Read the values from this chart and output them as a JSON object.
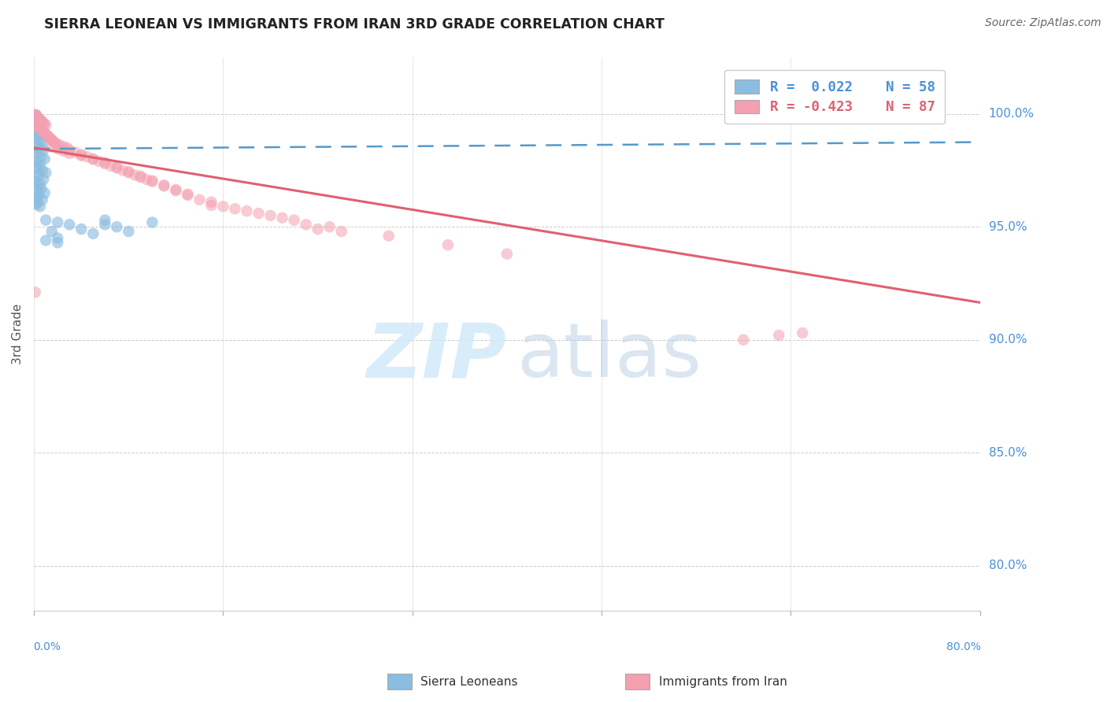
{
  "title": "SIERRA LEONEAN VS IMMIGRANTS FROM IRAN 3RD GRADE CORRELATION CHART",
  "source": "Source: ZipAtlas.com",
  "ylabel": "3rd Grade",
  "ytick_labels": [
    "80.0%",
    "85.0%",
    "90.0%",
    "95.0%",
    "100.0%"
  ],
  "ytick_values": [
    0.8,
    0.85,
    0.9,
    0.95,
    1.0
  ],
  "xlim": [
    0.0,
    0.8
  ],
  "ylim": [
    0.78,
    1.025
  ],
  "blue_color": "#8bbde0",
  "pink_color": "#f4a0b0",
  "trendline_blue_color": "#5599cc",
  "trendline_pink_color": "#e06070",
  "background_color": "#ffffff",
  "blue_trendline": [
    [
      0.0,
      0.9845
    ],
    [
      0.8,
      0.9875
    ]
  ],
  "pink_trendline": [
    [
      0.0,
      0.985
    ],
    [
      0.8,
      0.9165
    ]
  ],
  "sierra_leonean_points": [
    [
      0.001,
      0.999
    ],
    [
      0.002,
      0.9995
    ],
    [
      0.003,
      0.998
    ],
    [
      0.001,
      0.997
    ],
    [
      0.004,
      0.9975
    ],
    [
      0.002,
      0.996
    ],
    [
      0.003,
      0.9955
    ],
    [
      0.005,
      0.995
    ],
    [
      0.001,
      0.994
    ],
    [
      0.004,
      0.993
    ],
    [
      0.002,
      0.992
    ],
    [
      0.006,
      0.991
    ],
    [
      0.003,
      0.99
    ],
    [
      0.001,
      0.989
    ],
    [
      0.005,
      0.988
    ],
    [
      0.007,
      0.987
    ],
    [
      0.002,
      0.986
    ],
    [
      0.004,
      0.985
    ],
    [
      0.008,
      0.984
    ],
    [
      0.003,
      0.983
    ],
    [
      0.001,
      0.982
    ],
    [
      0.006,
      0.981
    ],
    [
      0.009,
      0.98
    ],
    [
      0.002,
      0.979
    ],
    [
      0.005,
      0.978
    ],
    [
      0.001,
      0.977
    ],
    [
      0.003,
      0.976
    ],
    [
      0.007,
      0.975
    ],
    [
      0.01,
      0.974
    ],
    [
      0.004,
      0.973
    ],
    [
      0.002,
      0.972
    ],
    [
      0.008,
      0.971
    ],
    [
      0.001,
      0.97
    ],
    [
      0.005,
      0.969
    ],
    [
      0.003,
      0.968
    ],
    [
      0.006,
      0.967
    ],
    [
      0.002,
      0.966
    ],
    [
      0.009,
      0.965
    ],
    [
      0.004,
      0.964
    ],
    [
      0.001,
      0.963
    ],
    [
      0.007,
      0.962
    ],
    [
      0.003,
      0.961
    ],
    [
      0.002,
      0.96
    ],
    [
      0.005,
      0.959
    ],
    [
      0.06,
      0.953
    ],
    [
      0.1,
      0.952
    ],
    [
      0.06,
      0.951
    ],
    [
      0.07,
      0.95
    ],
    [
      0.08,
      0.948
    ],
    [
      0.02,
      0.945
    ],
    [
      0.01,
      0.944
    ],
    [
      0.02,
      0.943
    ],
    [
      0.02,
      0.952
    ],
    [
      0.03,
      0.951
    ],
    [
      0.04,
      0.949
    ],
    [
      0.05,
      0.947
    ],
    [
      0.01,
      0.953
    ],
    [
      0.015,
      0.948
    ]
  ],
  "iran_points": [
    [
      0.001,
      0.9998
    ],
    [
      0.002,
      0.9992
    ],
    [
      0.003,
      0.9985
    ],
    [
      0.004,
      0.998
    ],
    [
      0.005,
      0.9975
    ],
    [
      0.006,
      0.997
    ],
    [
      0.007,
      0.9965
    ],
    [
      0.008,
      0.996
    ],
    [
      0.009,
      0.9955
    ],
    [
      0.01,
      0.995
    ],
    [
      0.002,
      0.9948
    ],
    [
      0.003,
      0.9945
    ],
    [
      0.004,
      0.994
    ],
    [
      0.005,
      0.9935
    ],
    [
      0.006,
      0.993
    ],
    [
      0.007,
      0.9925
    ],
    [
      0.008,
      0.992
    ],
    [
      0.009,
      0.9915
    ],
    [
      0.01,
      0.991
    ],
    [
      0.011,
      0.9905
    ],
    [
      0.012,
      0.99
    ],
    [
      0.013,
      0.9895
    ],
    [
      0.014,
      0.989
    ],
    [
      0.015,
      0.9885
    ],
    [
      0.016,
      0.988
    ],
    [
      0.017,
      0.9875
    ],
    [
      0.018,
      0.987
    ],
    [
      0.02,
      0.9865
    ],
    [
      0.022,
      0.986
    ],
    [
      0.025,
      0.9855
    ],
    [
      0.028,
      0.985
    ],
    [
      0.03,
      0.984
    ],
    [
      0.035,
      0.983
    ],
    [
      0.04,
      0.982
    ],
    [
      0.045,
      0.981
    ],
    [
      0.05,
      0.98
    ],
    [
      0.06,
      0.978
    ],
    [
      0.07,
      0.976
    ],
    [
      0.08,
      0.974
    ],
    [
      0.09,
      0.972
    ],
    [
      0.1,
      0.97
    ],
    [
      0.11,
      0.968
    ],
    [
      0.12,
      0.966
    ],
    [
      0.13,
      0.964
    ],
    [
      0.14,
      0.962
    ],
    [
      0.015,
      0.9855
    ],
    [
      0.02,
      0.9845
    ],
    [
      0.025,
      0.9835
    ],
    [
      0.03,
      0.9825
    ],
    [
      0.04,
      0.9815
    ],
    [
      0.05,
      0.98
    ],
    [
      0.06,
      0.9785
    ],
    [
      0.07,
      0.9765
    ],
    [
      0.08,
      0.9745
    ],
    [
      0.09,
      0.9725
    ],
    [
      0.1,
      0.9705
    ],
    [
      0.11,
      0.9685
    ],
    [
      0.12,
      0.9665
    ],
    [
      0.13,
      0.9645
    ],
    [
      0.15,
      0.961
    ],
    [
      0.2,
      0.955
    ],
    [
      0.25,
      0.95
    ],
    [
      0.17,
      0.958
    ],
    [
      0.19,
      0.956
    ],
    [
      0.21,
      0.954
    ],
    [
      0.23,
      0.951
    ],
    [
      0.24,
      0.949
    ],
    [
      0.26,
      0.948
    ],
    [
      0.15,
      0.9595
    ],
    [
      0.055,
      0.979
    ],
    [
      0.065,
      0.977
    ],
    [
      0.075,
      0.975
    ],
    [
      0.085,
      0.973
    ],
    [
      0.095,
      0.971
    ],
    [
      0.16,
      0.959
    ],
    [
      0.18,
      0.957
    ],
    [
      0.22,
      0.953
    ],
    [
      0.3,
      0.946
    ],
    [
      0.35,
      0.942
    ],
    [
      0.4,
      0.938
    ],
    [
      0.6,
      0.9
    ],
    [
      0.65,
      0.903
    ],
    [
      0.63,
      0.902
    ],
    [
      0.001,
      0.921
    ]
  ]
}
